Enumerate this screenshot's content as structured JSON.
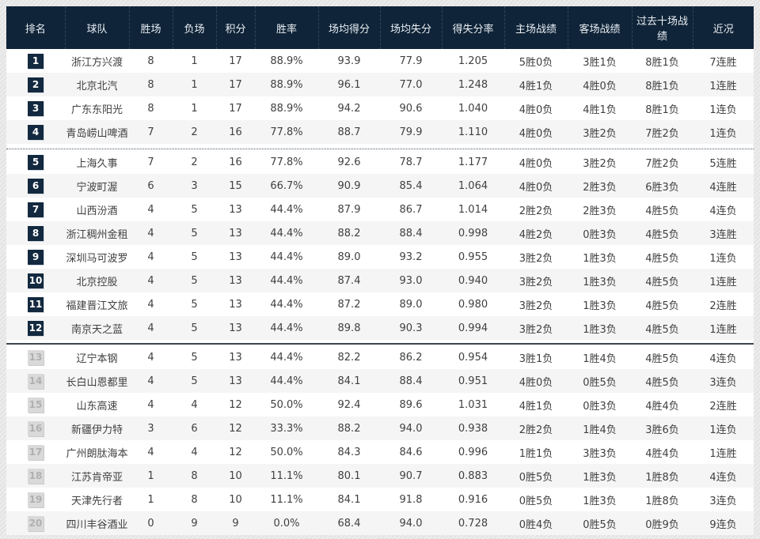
{
  "colors": {
    "header_bg": "#0f2438",
    "header_text": "#e9eef3",
    "row_alt_bg": "#f5f5f5",
    "badge_dark_bg": "#13293f",
    "badge_dark_text": "#ffffff",
    "badge_gray_bg": "#d9d9d9",
    "badge_gray_text": "#b0b0b0",
    "body_text": "#404040",
    "page_bg": "#e7e7e7"
  },
  "chart_data": {
    "type": "table",
    "columns": [
      "排名",
      "球队",
      "胜场",
      "负场",
      "积分",
      "胜率",
      "场均得分",
      "场均失分",
      "得失分率",
      "主场战绩",
      "客场战绩",
      "过去十场战绩",
      "近况"
    ],
    "field_order": [
      "rank",
      "team",
      "wins",
      "losses",
      "points",
      "win_rate",
      "avg_scored",
      "avg_conceded",
      "ratio",
      "home",
      "away",
      "last10",
      "streak"
    ],
    "separators": {
      "dotted_after": 4,
      "solid_after": 12
    },
    "rows": [
      {
        "rank": "1",
        "team": "浙江方兴渡",
        "wins": "8",
        "losses": "1",
        "points": "17",
        "win_rate": "88.9%",
        "avg_scored": "93.9",
        "avg_conceded": "77.9",
        "ratio": "1.205",
        "home": "5胜0负",
        "away": "3胜1负",
        "last10": "8胜1负",
        "streak": "7连胜",
        "badge_style": "dark"
      },
      {
        "rank": "2",
        "team": "北京北汽",
        "wins": "8",
        "losses": "1",
        "points": "17",
        "win_rate": "88.9%",
        "avg_scored": "96.1",
        "avg_conceded": "77.0",
        "ratio": "1.248",
        "home": "4胜1负",
        "away": "4胜0负",
        "last10": "8胜1负",
        "streak": "1连胜",
        "badge_style": "dark"
      },
      {
        "rank": "3",
        "team": "广东东阳光",
        "wins": "8",
        "losses": "1",
        "points": "17",
        "win_rate": "88.9%",
        "avg_scored": "94.2",
        "avg_conceded": "90.6",
        "ratio": "1.040",
        "home": "4胜0负",
        "away": "4胜1负",
        "last10": "8胜1负",
        "streak": "1连负",
        "badge_style": "dark"
      },
      {
        "rank": "4",
        "team": "青岛崂山啤酒",
        "wins": "7",
        "losses": "2",
        "points": "16",
        "win_rate": "77.8%",
        "avg_scored": "88.7",
        "avg_conceded": "79.9",
        "ratio": "1.110",
        "home": "4胜0负",
        "away": "3胜2负",
        "last10": "7胜2负",
        "streak": "1连负",
        "badge_style": "dark"
      },
      {
        "rank": "5",
        "team": "上海久事",
        "wins": "7",
        "losses": "2",
        "points": "16",
        "win_rate": "77.8%",
        "avg_scored": "92.6",
        "avg_conceded": "78.7",
        "ratio": "1.177",
        "home": "4胜0负",
        "away": "3胜2负",
        "last10": "7胜2负",
        "streak": "5连胜",
        "badge_style": "dark"
      },
      {
        "rank": "6",
        "team": "宁波町渥",
        "wins": "6",
        "losses": "3",
        "points": "15",
        "win_rate": "66.7%",
        "avg_scored": "90.9",
        "avg_conceded": "85.4",
        "ratio": "1.064",
        "home": "4胜0负",
        "away": "2胜3负",
        "last10": "6胜3负",
        "streak": "4连胜",
        "badge_style": "dark"
      },
      {
        "rank": "7",
        "team": "山西汾酒",
        "wins": "4",
        "losses": "5",
        "points": "13",
        "win_rate": "44.4%",
        "avg_scored": "87.9",
        "avg_conceded": "86.7",
        "ratio": "1.014",
        "home": "2胜2负",
        "away": "2胜3负",
        "last10": "4胜5负",
        "streak": "4连负",
        "badge_style": "dark"
      },
      {
        "rank": "8",
        "team": "浙江稠州金租",
        "wins": "4",
        "losses": "5",
        "points": "13",
        "win_rate": "44.4%",
        "avg_scored": "88.2",
        "avg_conceded": "88.4",
        "ratio": "0.998",
        "home": "4胜2负",
        "away": "0胜3负",
        "last10": "4胜5负",
        "streak": "3连胜",
        "badge_style": "dark"
      },
      {
        "rank": "9",
        "team": "深圳马可波罗",
        "wins": "4",
        "losses": "5",
        "points": "13",
        "win_rate": "44.4%",
        "avg_scored": "89.0",
        "avg_conceded": "93.2",
        "ratio": "0.955",
        "home": "3胜2负",
        "away": "1胜3负",
        "last10": "4胜5负",
        "streak": "1连负",
        "badge_style": "dark"
      },
      {
        "rank": "10",
        "team": "北京控股",
        "wins": "4",
        "losses": "5",
        "points": "13",
        "win_rate": "44.4%",
        "avg_scored": "87.4",
        "avg_conceded": "93.0",
        "ratio": "0.940",
        "home": "3胜2负",
        "away": "1胜3负",
        "last10": "4胜5负",
        "streak": "1连胜",
        "badge_style": "dark"
      },
      {
        "rank": "11",
        "team": "福建晋江文旅",
        "wins": "4",
        "losses": "5",
        "points": "13",
        "win_rate": "44.4%",
        "avg_scored": "87.2",
        "avg_conceded": "89.0",
        "ratio": "0.980",
        "home": "3胜2负",
        "away": "1胜3负",
        "last10": "4胜5负",
        "streak": "2连胜",
        "badge_style": "dark"
      },
      {
        "rank": "12",
        "team": "南京天之蓝",
        "wins": "4",
        "losses": "5",
        "points": "13",
        "win_rate": "44.4%",
        "avg_scored": "89.8",
        "avg_conceded": "90.3",
        "ratio": "0.994",
        "home": "3胜2负",
        "away": "1胜3负",
        "last10": "4胜5负",
        "streak": "1连胜",
        "badge_style": "dark"
      },
      {
        "rank": "13",
        "team": "辽宁本钢",
        "wins": "4",
        "losses": "5",
        "points": "13",
        "win_rate": "44.4%",
        "avg_scored": "82.2",
        "avg_conceded": "86.2",
        "ratio": "0.954",
        "home": "3胜1负",
        "away": "1胜4负",
        "last10": "4胜5负",
        "streak": "4连负",
        "badge_style": "gray"
      },
      {
        "rank": "14",
        "team": "长白山恩都里",
        "wins": "4",
        "losses": "5",
        "points": "13",
        "win_rate": "44.4%",
        "avg_scored": "84.1",
        "avg_conceded": "88.4",
        "ratio": "0.951",
        "home": "4胜0负",
        "away": "0胜5负",
        "last10": "4胜5负",
        "streak": "3连负",
        "badge_style": "gray"
      },
      {
        "rank": "15",
        "team": "山东高速",
        "wins": "4",
        "losses": "4",
        "points": "12",
        "win_rate": "50.0%",
        "avg_scored": "92.4",
        "avg_conceded": "89.6",
        "ratio": "1.031",
        "home": "4胜1负",
        "away": "0胜3负",
        "last10": "4胜4负",
        "streak": "2连胜",
        "badge_style": "gray"
      },
      {
        "rank": "16",
        "team": "新疆伊力特",
        "wins": "3",
        "losses": "6",
        "points": "12",
        "win_rate": "33.3%",
        "avg_scored": "88.2",
        "avg_conceded": "94.0",
        "ratio": "0.938",
        "home": "2胜2负",
        "away": "1胜4负",
        "last10": "3胜6负",
        "streak": "1连负",
        "badge_style": "gray"
      },
      {
        "rank": "17",
        "team": "广州朗肽海本",
        "wins": "4",
        "losses": "4",
        "points": "12",
        "win_rate": "50.0%",
        "avg_scored": "84.3",
        "avg_conceded": "84.6",
        "ratio": "0.996",
        "home": "1胜1负",
        "away": "3胜3负",
        "last10": "4胜4负",
        "streak": "1连胜",
        "badge_style": "gray"
      },
      {
        "rank": "18",
        "team": "江苏肯帝亚",
        "wins": "1",
        "losses": "8",
        "points": "10",
        "win_rate": "11.1%",
        "avg_scored": "80.1",
        "avg_conceded": "90.7",
        "ratio": "0.883",
        "home": "0胜5负",
        "away": "1胜3负",
        "last10": "1胜8负",
        "streak": "4连负",
        "badge_style": "gray"
      },
      {
        "rank": "19",
        "team": "天津先行者",
        "wins": "1",
        "losses": "8",
        "points": "10",
        "win_rate": "11.1%",
        "avg_scored": "84.1",
        "avg_conceded": "91.8",
        "ratio": "0.916",
        "home": "0胜5负",
        "away": "1胜3负",
        "last10": "1胜8负",
        "streak": "3连负",
        "badge_style": "gray"
      },
      {
        "rank": "20",
        "team": "四川丰谷酒业",
        "wins": "0",
        "losses": "9",
        "points": "9",
        "win_rate": "0.0%",
        "avg_scored": "68.4",
        "avg_conceded": "94.0",
        "ratio": "0.728",
        "home": "0胜4负",
        "away": "0胜5负",
        "last10": "0胜9负",
        "streak": "9连负",
        "badge_style": "gray"
      }
    ]
  }
}
